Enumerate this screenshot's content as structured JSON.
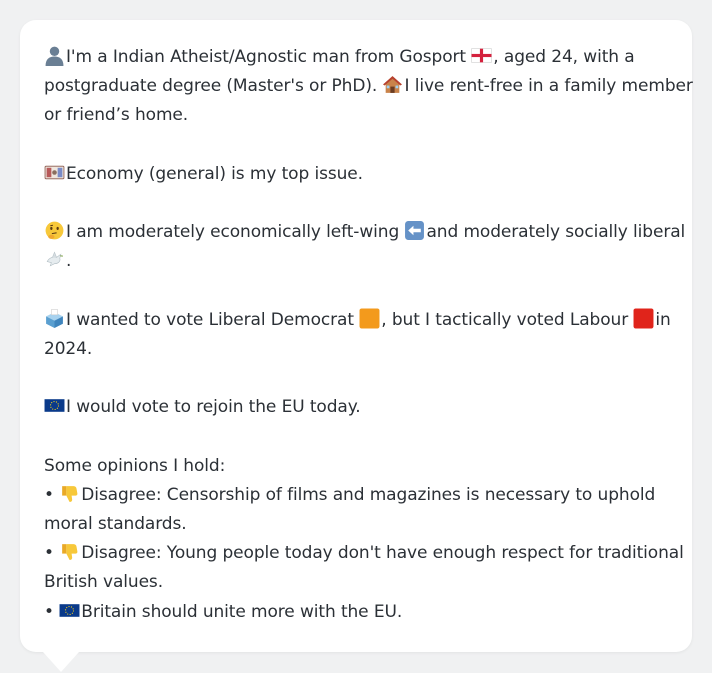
{
  "bio": {
    "line1": "I'm a Indian Atheist/Agnostic man from Gosport",
    "line1b": ", aged 24, with a",
    "line2a": "postgraduate degree (Master's or PhD).",
    "line2b": "I live rent-free in a family member",
    "line3": "or friend’s home.",
    "issue": "Economy (general) is my top issue.",
    "ideology_a": "I am moderately economically left-wing",
    "ideology_b": "and moderately socially liberal",
    "ideology_end": ".",
    "vote_a": "I wanted to vote Liberal Democrat",
    "vote_b": ", but I tactically voted Labour",
    "vote_c": "in",
    "vote_year": "2024.",
    "eu": "I would vote to rejoin the EU today."
  },
  "opinions": {
    "heading": "Some opinions I hold:",
    "bullet": "•",
    "items": [
      {
        "line1": "Disagree: Censorship of films and magazines is necessary to uphold",
        "line2": "moral standards."
      },
      {
        "line1": "Disagree: Young people today don't have enough respect for traditional",
        "line2": "British values."
      },
      {
        "line1": "Britain should unite more with the EU."
      }
    ]
  },
  "icons": {
    "person": "person-silhouette-icon",
    "england_flag": "england-flag-icon",
    "house": "house-icon",
    "money": "money-banknote-icon",
    "thinking": "thinking-face-icon",
    "left_arrow": "left-arrow-icon",
    "dove": "dove-icon",
    "ballot": "ballot-box-icon",
    "libdem": "orange-square-icon",
    "labour": "red-square-icon",
    "eu_flag": "eu-flag-icon",
    "thumbs_down": "thumbs-down-icon"
  },
  "colors": {
    "libdem": "#f39a1c",
    "labour": "#e0241b",
    "eu_blue": "#0a3a8a",
    "text": "#2b3036"
  }
}
